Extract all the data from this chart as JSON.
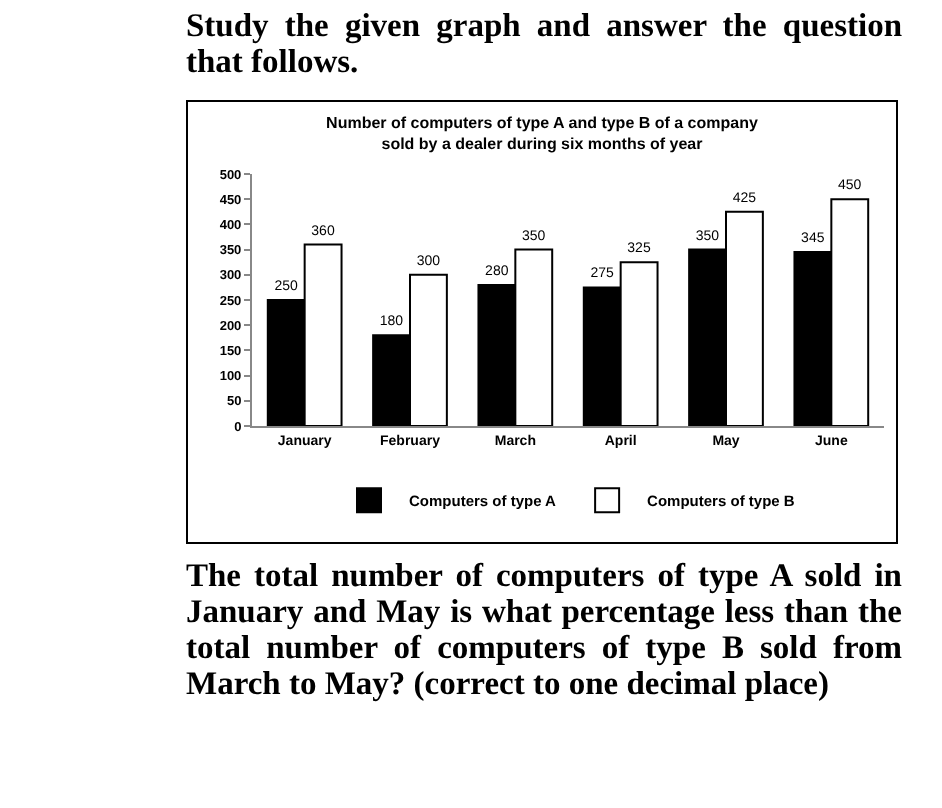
{
  "chart_data": {
    "type": "bar",
    "title": "Number of computers of type A and type B of a company sold by a dealer during six months of year",
    "categories": [
      "January",
      "February",
      "March",
      "April",
      "May",
      "June"
    ],
    "series": [
      {
        "name": "Computers of type A",
        "color": "#000000",
        "values": [
          250,
          180,
          280,
          275,
          350,
          345
        ]
      },
      {
        "name": "Computers of type B",
        "color": "#ffffff",
        "values": [
          360,
          300,
          350,
          325,
          425,
          450
        ]
      }
    ],
    "ylim": [
      0,
      500
    ],
    "yticks": [
      0,
      50,
      100,
      150,
      200,
      250,
      300,
      350,
      400,
      450,
      500
    ],
    "grid": false,
    "legend": "bottom",
    "data_labels": true,
    "annotations": [
      "Study the given graph and answer the question that follows.",
      "The total number of computers of type A sold in January and May is what percentage less than the total number of computers of type B sold from March to May? (correct to one decimal place)"
    ]
  }
}
